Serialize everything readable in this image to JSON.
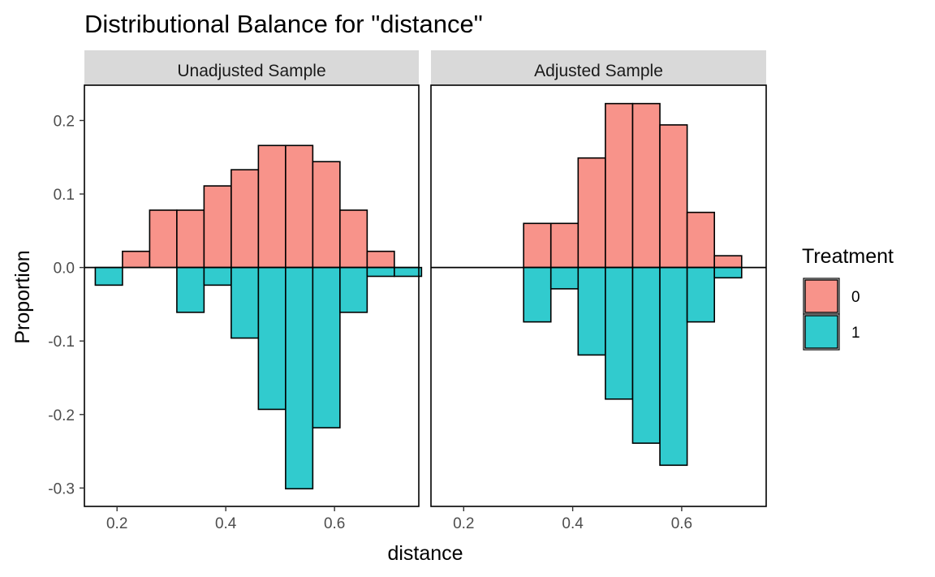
{
  "chart_data": {
    "type": "bar",
    "title": "Distributional Balance for \"distance\"",
    "xlabel": "distance",
    "ylabel": "Proportion",
    "xlim": [
      0.14,
      0.755
    ],
    "ylim": [
      -0.325,
      0.248
    ],
    "x_ticks": [
      0.2,
      0.4,
      0.6
    ],
    "x_tick_labels": [
      "0.2",
      "0.4",
      "0.6"
    ],
    "y_ticks": [
      0.2,
      0.1,
      0.0,
      -0.1,
      -0.2,
      -0.3
    ],
    "y_tick_labels": [
      "0.2",
      "0.1",
      "0.0",
      "-0.1",
      "-0.2",
      "-0.3"
    ],
    "bin_width": 0.05,
    "bin_starts": [
      0.16,
      0.21,
      0.26,
      0.31,
      0.36,
      0.41,
      0.46,
      0.51,
      0.56,
      0.61,
      0.66,
      0.71
    ],
    "legend": {
      "title": "Treatment",
      "position": "right",
      "entries": [
        {
          "label": "0",
          "color": "#f8938a"
        },
        {
          "label": "1",
          "color": "#31cbce"
        }
      ]
    },
    "panels": [
      {
        "strip": "Unadjusted Sample",
        "series": [
          {
            "treatment": "0",
            "values": [
              0,
              0.022,
              0.078,
              0.078,
              0.111,
              0.133,
              0.166,
              0.166,
              0.144,
              0.078,
              0.022,
              0
            ]
          },
          {
            "treatment": "1",
            "values": [
              -0.024,
              0,
              0,
              -0.061,
              -0.024,
              -0.096,
              -0.193,
              -0.301,
              -0.218,
              -0.061,
              -0.012,
              -0.012
            ]
          }
        ]
      },
      {
        "strip": "Adjusted Sample",
        "series": [
          {
            "treatment": "0",
            "values": [
              0,
              0,
              0,
              0.06,
              0.06,
              0.149,
              0.223,
              0.223,
              0.194,
              0.075,
              0.016,
              0
            ]
          },
          {
            "treatment": "1",
            "values": [
              0,
              0,
              0,
              -0.074,
              -0.029,
              -0.119,
              -0.179,
              -0.239,
              -0.269,
              -0.074,
              -0.014,
              0
            ]
          }
        ]
      }
    ]
  }
}
